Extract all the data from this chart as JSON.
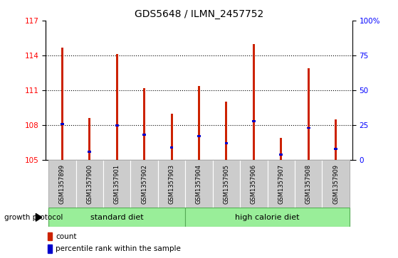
{
  "title": "GDS5648 / ILMN_2457752",
  "samples": [
    "GSM1357899",
    "GSM1357900",
    "GSM1357901",
    "GSM1357902",
    "GSM1357903",
    "GSM1357904",
    "GSM1357905",
    "GSM1357906",
    "GSM1357907",
    "GSM1357908",
    "GSM1357909"
  ],
  "count_values": [
    114.7,
    108.6,
    114.1,
    111.2,
    109.0,
    111.4,
    110.0,
    115.0,
    106.9,
    112.9,
    108.5
  ],
  "percentile_values": [
    26,
    6,
    25,
    18,
    9,
    17,
    12,
    28,
    4,
    23,
    8
  ],
  "ylim_left": [
    105,
    117
  ],
  "ylim_right": [
    0,
    100
  ],
  "yticks_left": [
    105,
    108,
    111,
    114,
    117
  ],
  "yticks_right": [
    0,
    25,
    50,
    75,
    100
  ],
  "yticklabels_right": [
    "0",
    "25",
    "50",
    "75",
    "100%"
  ],
  "bar_color": "#cc2200",
  "percentile_color": "#0000cc",
  "standard_diet_label": "standard diet",
  "high_calorie_diet_label": "high calorie diet",
  "group_color": "#99ee99",
  "standard_diet_indices": [
    0,
    1,
    2,
    3,
    4
  ],
  "high_calorie_diet_indices": [
    5,
    6,
    7,
    8,
    9,
    10
  ],
  "growth_protocol_label": "growth protocol",
  "legend_count_label": "count",
  "legend_percentile_label": "percentile rank within the sample",
  "bar_width": 0.08,
  "ybase": 105,
  "percentile_bar_height": 0.18,
  "percentile_bar_width": 0.12
}
